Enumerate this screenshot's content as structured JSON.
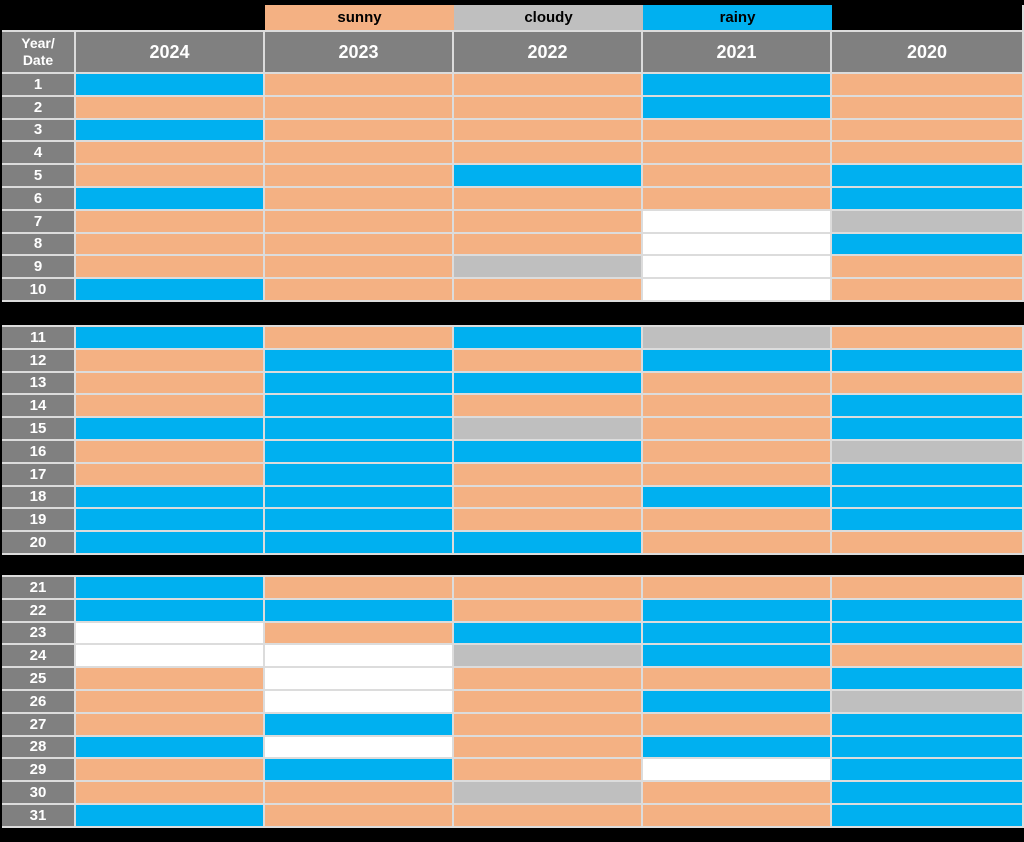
{
  "colors": {
    "sunny": "#F4B183",
    "cloudy": "#BFBFBF",
    "rainy": "#00B0F0",
    "empty": "#FFFFFF",
    "filler": "#000000",
    "header_bg": "#808080",
    "header_text": "#FFFFFF",
    "background": "#000000",
    "grid_line": "#DCDCDC"
  },
  "legend": [
    {
      "label": "",
      "category": "filler"
    },
    {
      "label": "sunny",
      "category": "sunny"
    },
    {
      "label": "cloudy",
      "category": "cloudy"
    },
    {
      "label": "rainy",
      "category": "rainy"
    },
    {
      "label": "",
      "category": "filler"
    }
  ],
  "header": {
    "corner_lines": [
      "Year/",
      "Date"
    ],
    "years": [
      "2024",
      "2023",
      "2022",
      "2021",
      "2020"
    ]
  },
  "chart_data": {
    "type": "heatmap",
    "title": "",
    "xlabel": "Year",
    "ylabel": "Date",
    "columns": [
      "2024",
      "2023",
      "2022",
      "2021",
      "2020"
    ],
    "categories": [
      "sunny",
      "cloudy",
      "rainy"
    ],
    "empty_value": "empty",
    "row_blocks": [
      [
        1,
        10
      ],
      [
        11,
        20
      ],
      [
        21,
        31
      ]
    ],
    "legend_position": "top",
    "rows": [
      {
        "date": "1",
        "values": [
          "rainy",
          "sunny",
          "sunny",
          "rainy",
          "sunny"
        ]
      },
      {
        "date": "2",
        "values": [
          "sunny",
          "sunny",
          "sunny",
          "rainy",
          "sunny"
        ]
      },
      {
        "date": "3",
        "values": [
          "rainy",
          "sunny",
          "sunny",
          "sunny",
          "sunny"
        ]
      },
      {
        "date": "4",
        "values": [
          "sunny",
          "sunny",
          "sunny",
          "sunny",
          "sunny"
        ]
      },
      {
        "date": "5",
        "values": [
          "sunny",
          "sunny",
          "rainy",
          "sunny",
          "rainy"
        ]
      },
      {
        "date": "6",
        "values": [
          "rainy",
          "sunny",
          "sunny",
          "sunny",
          "rainy"
        ]
      },
      {
        "date": "7",
        "values": [
          "sunny",
          "sunny",
          "sunny",
          "empty",
          "cloudy"
        ]
      },
      {
        "date": "8",
        "values": [
          "sunny",
          "sunny",
          "sunny",
          "empty",
          "rainy"
        ]
      },
      {
        "date": "9",
        "values": [
          "sunny",
          "sunny",
          "cloudy",
          "empty",
          "sunny"
        ]
      },
      {
        "date": "10",
        "values": [
          "rainy",
          "sunny",
          "sunny",
          "empty",
          "sunny"
        ]
      },
      {
        "date": "11",
        "values": [
          "rainy",
          "sunny",
          "rainy",
          "cloudy",
          "sunny"
        ]
      },
      {
        "date": "12",
        "values": [
          "sunny",
          "rainy",
          "sunny",
          "rainy",
          "rainy"
        ]
      },
      {
        "date": "13",
        "values": [
          "sunny",
          "rainy",
          "rainy",
          "sunny",
          "sunny"
        ]
      },
      {
        "date": "14",
        "values": [
          "sunny",
          "rainy",
          "sunny",
          "sunny",
          "rainy"
        ]
      },
      {
        "date": "15",
        "values": [
          "rainy",
          "rainy",
          "cloudy",
          "sunny",
          "rainy"
        ]
      },
      {
        "date": "16",
        "values": [
          "sunny",
          "rainy",
          "rainy",
          "sunny",
          "cloudy"
        ]
      },
      {
        "date": "17",
        "values": [
          "sunny",
          "rainy",
          "sunny",
          "sunny",
          "rainy"
        ]
      },
      {
        "date": "18",
        "values": [
          "rainy",
          "rainy",
          "sunny",
          "rainy",
          "rainy"
        ]
      },
      {
        "date": "19",
        "values": [
          "rainy",
          "rainy",
          "sunny",
          "sunny",
          "rainy"
        ]
      },
      {
        "date": "20",
        "values": [
          "rainy",
          "rainy",
          "rainy",
          "sunny",
          "sunny"
        ]
      },
      {
        "date": "21",
        "values": [
          "rainy",
          "sunny",
          "sunny",
          "sunny",
          "sunny"
        ]
      },
      {
        "date": "22",
        "values": [
          "rainy",
          "rainy",
          "sunny",
          "rainy",
          "rainy"
        ]
      },
      {
        "date": "23",
        "values": [
          "empty",
          "sunny",
          "rainy",
          "rainy",
          "rainy"
        ]
      },
      {
        "date": "24",
        "values": [
          "empty",
          "empty",
          "cloudy",
          "rainy",
          "sunny"
        ]
      },
      {
        "date": "25",
        "values": [
          "sunny",
          "empty",
          "sunny",
          "sunny",
          "rainy"
        ]
      },
      {
        "date": "26",
        "values": [
          "sunny",
          "empty",
          "sunny",
          "rainy",
          "cloudy"
        ]
      },
      {
        "date": "27",
        "values": [
          "sunny",
          "rainy",
          "sunny",
          "sunny",
          "rainy"
        ]
      },
      {
        "date": "28",
        "values": [
          "rainy",
          "empty",
          "sunny",
          "rainy",
          "rainy"
        ]
      },
      {
        "date": "29",
        "values": [
          "sunny",
          "rainy",
          "sunny",
          "empty",
          "rainy"
        ]
      },
      {
        "date": "30",
        "values": [
          "sunny",
          "sunny",
          "cloudy",
          "sunny",
          "rainy"
        ]
      },
      {
        "date": "31",
        "values": [
          "rainy",
          "sunny",
          "sunny",
          "sunny",
          "rainy"
        ]
      }
    ]
  }
}
